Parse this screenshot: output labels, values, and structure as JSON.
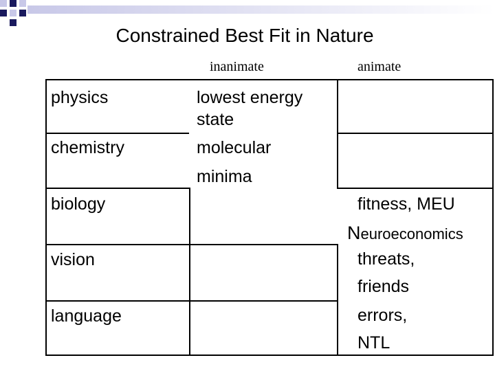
{
  "title": "Constrained Best Fit in Nature",
  "table": {
    "column_headers": [
      "inanimate",
      "animate"
    ],
    "rows": [
      {
        "label": "physics",
        "inanimate": "lowest energy state",
        "animate": ""
      },
      {
        "label": "chemistry",
        "inanimate": "molecular minima",
        "animate": ""
      },
      {
        "label": "biology",
        "inanimate": "",
        "animate": "fitness, MEU",
        "note": "Neuroeconomics"
      },
      {
        "label": "vision",
        "inanimate": "",
        "animate": "threats, friends"
      },
      {
        "label": "language",
        "inanimate": "",
        "animate": "errors, NTL"
      }
    ]
  }
}
